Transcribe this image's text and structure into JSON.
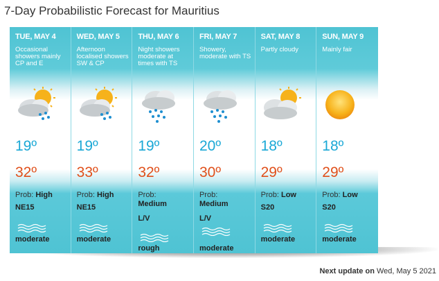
{
  "title": "7-Day Probabilistic Forecast for Mauritius",
  "days": [
    {
      "name": "TUE, MAY 4",
      "desc": "Occasional showers mainly CP and E",
      "icon": "sun-cloud-rain-icon",
      "min": "19º",
      "max": "32º",
      "prob_label": "Prob:",
      "prob": "High",
      "wind": "NE15",
      "sea": "moderate"
    },
    {
      "name": "WED, MAY 5",
      "desc": "Afternoon localised showers SW & CP",
      "icon": "sun-cloud-rain-icon",
      "min": "19º",
      "max": "33º",
      "prob_label": "Prob:",
      "prob": "High",
      "wind": "NE15",
      "sea": "moderate"
    },
    {
      "name": "THU, MAY 6",
      "desc": "Night showers moderate at times with TS",
      "icon": "cloud-rain-icon",
      "min": "19º",
      "max": "32º",
      "prob_label": "Prob:",
      "prob": "Medium",
      "wind": "L/V",
      "sea": "rough"
    },
    {
      "name": "FRI, MAY 7",
      "desc": "Showery, moderate with TS",
      "icon": "cloud-rain-icon",
      "min": "20º",
      "max": "30º",
      "prob_label": "Prob:",
      "prob": "Medium",
      "wind": "L/V",
      "sea": "moderate"
    },
    {
      "name": "SAT, MAY 8",
      "desc": "Partly cloudy",
      "icon": "partly-cloudy-icon",
      "min": "18º",
      "max": "29º",
      "prob_label": "Prob:",
      "prob": "Low",
      "wind": "S20",
      "sea": "moderate"
    },
    {
      "name": "SUN, MAY 9",
      "desc": "Mainly fair",
      "icon": "sun-icon",
      "min": "18º",
      "max": "29º",
      "prob_label": "Prob:",
      "prob": "Low",
      "wind": "S20",
      "sea": "moderate"
    }
  ],
  "next_update": {
    "label": "Next update on",
    "value": "Wed, May 5 2021"
  },
  "colors": {
    "min_temp": "#1aa8d6",
    "max_temp": "#e0501b",
    "panel": "#4fc3d3"
  }
}
